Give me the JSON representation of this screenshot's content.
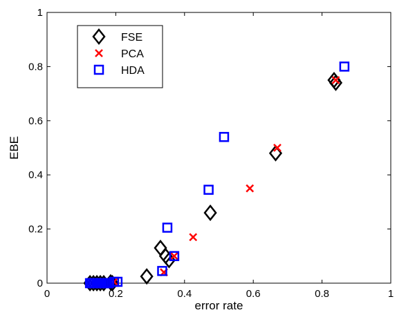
{
  "chart_data": {
    "type": "scatter",
    "xlabel": "error rate",
    "ylabel": "EBE",
    "xlim": [
      0,
      1
    ],
    "ylim": [
      0,
      1
    ],
    "xticks": [
      "0",
      "0.2",
      "0.4",
      "0.6",
      "0.8",
      "1"
    ],
    "yticks": [
      "0",
      "0.2",
      "0.4",
      "0.6",
      "0.8",
      "1"
    ],
    "grid": false,
    "legend_position": "top-left",
    "series": [
      {
        "name": "FSE",
        "marker": "diamond",
        "color": "#000000",
        "points": [
          [
            0.125,
            0.0
          ],
          [
            0.135,
            0.0
          ],
          [
            0.145,
            0.0
          ],
          [
            0.155,
            0.0
          ],
          [
            0.165,
            0.0
          ],
          [
            0.185,
            0.003
          ],
          [
            0.19,
            0.0
          ],
          [
            0.29,
            0.025
          ],
          [
            0.33,
            0.13
          ],
          [
            0.345,
            0.1
          ],
          [
            0.355,
            0.085
          ],
          [
            0.475,
            0.26
          ],
          [
            0.665,
            0.48
          ],
          [
            0.835,
            0.75
          ],
          [
            0.84,
            0.74
          ]
        ]
      },
      {
        "name": "PCA",
        "marker": "x",
        "color": "#ff0000",
        "points": [
          [
            0.195,
            0.005
          ],
          [
            0.34,
            0.04
          ],
          [
            0.37,
            0.1
          ],
          [
            0.425,
            0.17
          ],
          [
            0.59,
            0.35
          ],
          [
            0.67,
            0.5
          ],
          [
            0.84,
            0.75
          ]
        ]
      },
      {
        "name": "HDA",
        "marker": "square",
        "color": "#0000ff",
        "points": [
          [
            0.125,
            0.0
          ],
          [
            0.13,
            0.0
          ],
          [
            0.135,
            0.0
          ],
          [
            0.14,
            0.0
          ],
          [
            0.145,
            0.0
          ],
          [
            0.15,
            0.0
          ],
          [
            0.155,
            0.0
          ],
          [
            0.16,
            0.0
          ],
          [
            0.165,
            0.0
          ],
          [
            0.17,
            0.0
          ],
          [
            0.175,
            0.0
          ],
          [
            0.18,
            0.0
          ],
          [
            0.195,
            0.005
          ],
          [
            0.205,
            0.005
          ],
          [
            0.335,
            0.045
          ],
          [
            0.35,
            0.205
          ],
          [
            0.37,
            0.1
          ],
          [
            0.47,
            0.345
          ],
          [
            0.515,
            0.54
          ],
          [
            0.865,
            0.8
          ]
        ]
      }
    ]
  }
}
